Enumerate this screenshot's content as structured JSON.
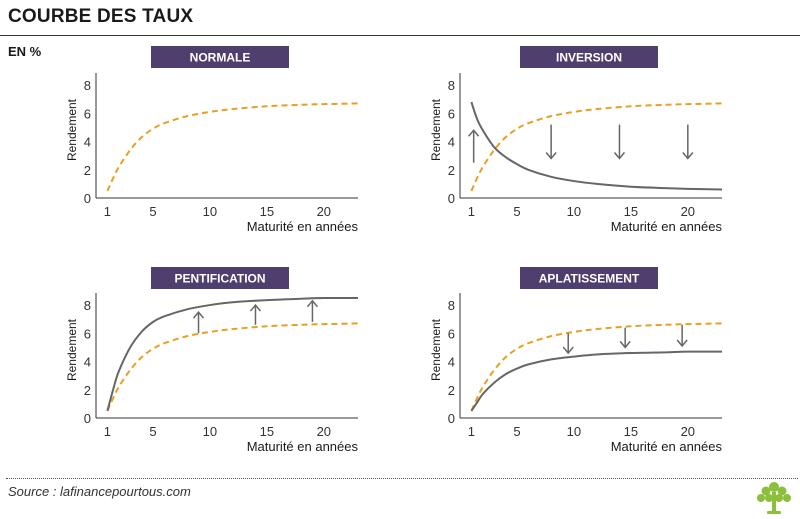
{
  "header": {
    "title": "COURBE DES TAUX",
    "unit": "EN %"
  },
  "footer": {
    "source": "Source : lafinancepourtous.com"
  },
  "colors": {
    "panel_header": "#4f3f6e",
    "normal_curve": "#e8a020",
    "shifted_curve": "#666666",
    "arrow": "#666666",
    "logo": "#8bbf3c"
  },
  "chart_data": [
    {
      "type": "line",
      "title": "NORMALE",
      "xlabel": "Maturité en années",
      "ylabel": "Rendement",
      "xticks": [
        1,
        5,
        10,
        15,
        20
      ],
      "yticks": [
        0,
        2,
        4,
        6,
        8
      ],
      "xlim": [
        0,
        23
      ],
      "ylim": [
        0,
        8.5
      ],
      "series": [
        {
          "style": "dashed",
          "color": "#e8a020",
          "x": [
            1,
            1.5,
            2,
            3,
            4,
            5,
            6,
            8,
            10,
            12,
            15,
            18,
            20,
            23
          ],
          "y": [
            0.5,
            1.4,
            2.2,
            3.4,
            4.3,
            4.9,
            5.3,
            5.8,
            6.1,
            6.3,
            6.5,
            6.6,
            6.65,
            6.7
          ]
        }
      ],
      "arrows": []
    },
    {
      "type": "line",
      "title": "INVERSION",
      "xlabel": "Maturité en années",
      "ylabel": "Rendement",
      "xticks": [
        1,
        5,
        10,
        15,
        20
      ],
      "yticks": [
        0,
        2,
        4,
        6,
        8
      ],
      "xlim": [
        0,
        23
      ],
      "ylim": [
        0,
        8.5
      ],
      "series": [
        {
          "style": "dashed",
          "color": "#e8a020",
          "x": [
            1,
            1.5,
            2,
            3,
            4,
            5,
            6,
            8,
            10,
            12,
            15,
            18,
            20,
            23
          ],
          "y": [
            0.5,
            1.4,
            2.2,
            3.4,
            4.3,
            4.9,
            5.3,
            5.8,
            6.1,
            6.3,
            6.5,
            6.6,
            6.65,
            6.7
          ]
        },
        {
          "style": "solid",
          "color": "#666666",
          "x": [
            1,
            1.5,
            2,
            3,
            4,
            5,
            6,
            8,
            10,
            12,
            15,
            18,
            20,
            23
          ],
          "y": [
            6.8,
            5.6,
            4.8,
            3.6,
            2.9,
            2.4,
            2.0,
            1.5,
            1.2,
            1.0,
            0.8,
            0.7,
            0.65,
            0.6
          ]
        }
      ],
      "arrows": [
        {
          "x": 1.2,
          "y1": 2.5,
          "y2": 4.8,
          "dir": "up"
        },
        {
          "x": 8.0,
          "y1": 5.2,
          "y2": 2.8,
          "dir": "down"
        },
        {
          "x": 14.0,
          "y1": 5.2,
          "y2": 2.8,
          "dir": "down"
        },
        {
          "x": 20.0,
          "y1": 5.2,
          "y2": 2.8,
          "dir": "down"
        }
      ]
    },
    {
      "type": "line",
      "title": "PENTIFICATION",
      "xlabel": "Maturité en années",
      "ylabel": "Rendement",
      "xticks": [
        1,
        5,
        10,
        15,
        20
      ],
      "yticks": [
        0,
        2,
        4,
        6,
        8
      ],
      "xlim": [
        0,
        23
      ],
      "ylim": [
        0,
        8.5
      ],
      "series": [
        {
          "style": "dashed",
          "color": "#e8a020",
          "x": [
            1,
            1.5,
            2,
            3,
            4,
            5,
            6,
            8,
            10,
            12,
            15,
            18,
            20,
            23
          ],
          "y": [
            0.5,
            1.4,
            2.2,
            3.4,
            4.3,
            4.9,
            5.3,
            5.8,
            6.1,
            6.3,
            6.5,
            6.6,
            6.65,
            6.7
          ]
        },
        {
          "style": "solid",
          "color": "#666666",
          "x": [
            1,
            1.5,
            2,
            3,
            4,
            5,
            6,
            8,
            10,
            12,
            15,
            18,
            20,
            23
          ],
          "y": [
            0.5,
            2.0,
            3.3,
            5.0,
            6.1,
            6.8,
            7.2,
            7.7,
            8.0,
            8.2,
            8.35,
            8.45,
            8.5,
            8.5
          ]
        }
      ],
      "arrows": [
        {
          "x": 9.0,
          "y1": 6.0,
          "y2": 7.5,
          "dir": "up"
        },
        {
          "x": 14.0,
          "y1": 6.6,
          "y2": 8.0,
          "dir": "up"
        },
        {
          "x": 19.0,
          "y1": 6.8,
          "y2": 8.3,
          "dir": "up"
        }
      ]
    },
    {
      "type": "line",
      "title": "APLATISSEMENT",
      "xlabel": "Maturité en années",
      "ylabel": "Rendement",
      "xticks": [
        1,
        5,
        10,
        15,
        20
      ],
      "yticks": [
        0,
        2,
        4,
        6,
        8
      ],
      "xlim": [
        0,
        23
      ],
      "ylim": [
        0,
        8.5
      ],
      "series": [
        {
          "style": "dashed",
          "color": "#e8a020",
          "x": [
            1,
            1.5,
            2,
            3,
            4,
            5,
            6,
            8,
            10,
            12,
            15,
            18,
            20,
            23
          ],
          "y": [
            0.5,
            1.4,
            2.2,
            3.4,
            4.3,
            4.9,
            5.3,
            5.8,
            6.1,
            6.3,
            6.5,
            6.6,
            6.65,
            6.7
          ]
        },
        {
          "style": "solid",
          "color": "#666666",
          "x": [
            1,
            1.5,
            2,
            3,
            4,
            5,
            6,
            8,
            10,
            12,
            15,
            18,
            20,
            23
          ],
          "y": [
            0.5,
            1.1,
            1.7,
            2.5,
            3.1,
            3.5,
            3.8,
            4.15,
            4.35,
            4.5,
            4.6,
            4.65,
            4.7,
            4.7
          ]
        }
      ],
      "arrows": [
        {
          "x": 9.5,
          "y1": 6.0,
          "y2": 4.6,
          "dir": "down"
        },
        {
          "x": 14.5,
          "y1": 6.4,
          "y2": 5.0,
          "dir": "down"
        },
        {
          "x": 19.5,
          "y1": 6.6,
          "y2": 5.1,
          "dir": "down"
        }
      ]
    }
  ]
}
